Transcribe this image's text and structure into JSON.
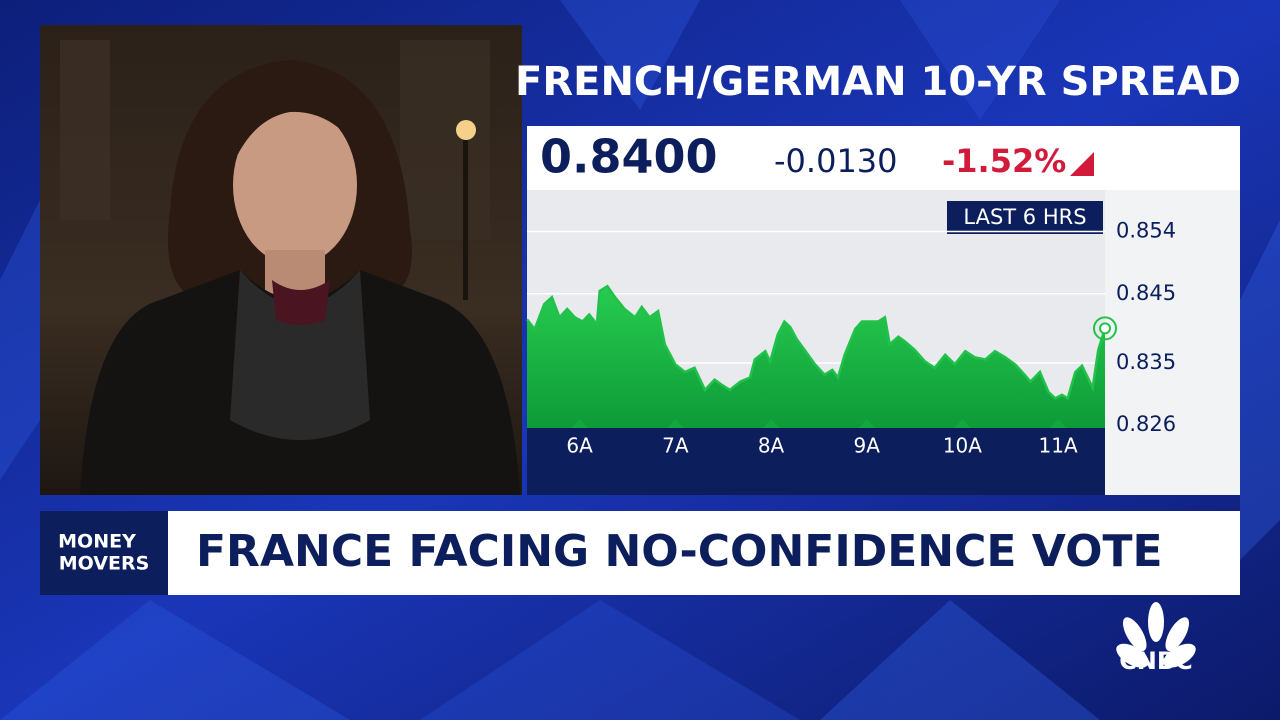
{
  "chart_data": {
    "type": "area",
    "title": "FRENCH/GERMAN 10-YR SPREAD",
    "last_value": "0.8400",
    "change": "-0.0130",
    "change_pct": "-1.52%",
    "range_label": "LAST 6 HRS",
    "color": "#22c24a",
    "x": [
      5.45,
      5.53,
      5.63,
      5.71,
      5.79,
      5.87,
      5.95,
      6.03,
      6.1,
      6.18,
      6.21,
      6.29,
      6.37,
      6.47,
      6.58,
      6.65,
      6.73,
      6.82,
      6.89,
      7.0,
      7.1,
      7.2,
      7.31,
      7.41,
      7.49,
      7.57,
      7.68,
      7.78,
      7.83,
      7.94,
      7.99,
      8.07,
      8.14,
      8.2,
      8.27,
      8.35,
      8.46,
      8.56,
      8.64,
      8.7,
      8.77,
      8.88,
      8.95,
      9.03,
      9.12,
      9.19,
      9.24,
      9.33,
      9.4,
      9.5,
      9.61,
      9.71,
      9.82,
      9.92,
      10.03,
      10.13,
      10.24,
      10.34,
      10.45,
      10.55,
      10.65,
      10.71,
      10.81,
      10.9,
      10.97,
      11.04,
      11.1,
      11.18,
      11.25,
      11.31,
      11.36,
      11.42,
      11.49
    ],
    "values": [
      0.8413,
      0.8399,
      0.8435,
      0.8445,
      0.8416,
      0.8428,
      0.8416,
      0.841,
      0.842,
      0.8406,
      0.8454,
      0.8461,
      0.8445,
      0.8428,
      0.8416,
      0.8431,
      0.8416,
      0.8425,
      0.8377,
      0.8348,
      0.8337,
      0.8343,
      0.8311,
      0.8326,
      0.8318,
      0.8311,
      0.8323,
      0.8329,
      0.8355,
      0.8367,
      0.8352,
      0.8391,
      0.841,
      0.8402,
      0.8384,
      0.8369,
      0.8348,
      0.8333,
      0.834,
      0.8329,
      0.8362,
      0.8399,
      0.841,
      0.841,
      0.841,
      0.8416,
      0.8377,
      0.8388,
      0.8381,
      0.8369,
      0.8352,
      0.8343,
      0.8362,
      0.8348,
      0.8367,
      0.8358,
      0.8355,
      0.8367,
      0.8358,
      0.8348,
      0.8333,
      0.8323,
      0.8337,
      0.8308,
      0.8299,
      0.8304,
      0.8299,
      0.8337,
      0.8346,
      0.8329,
      0.8314,
      0.8369,
      0.84
    ],
    "xlim": [
      5.45,
      11.49
    ],
    "xticks": [
      {
        "value": 6,
        "label": "6A"
      },
      {
        "value": 7,
        "label": "7A"
      },
      {
        "value": 8,
        "label": "8A"
      },
      {
        "value": 9,
        "label": "9A"
      },
      {
        "value": 10,
        "label": "10A"
      },
      {
        "value": 11,
        "label": "11A"
      }
    ],
    "ylim": [
      0.8256,
      0.86
    ],
    "yticks": [
      0.854,
      0.845,
      0.835,
      0.826
    ],
    "grid": true
  },
  "lower_third": {
    "segment": [
      "MONEY",
      "MOVERS"
    ],
    "headline": "FRANCE FACING NO-CONFIDENCE VOTE"
  },
  "logo": "CNBC"
}
